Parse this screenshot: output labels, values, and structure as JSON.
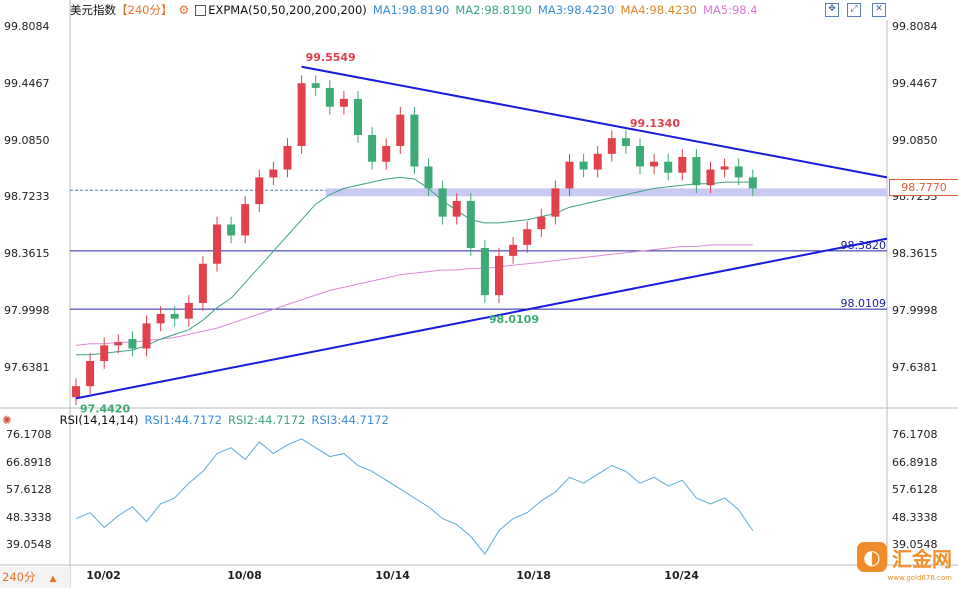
{
  "header": {
    "symbol": "美元指数",
    "period_tag": "【240分】",
    "settings_icon": "gear-icon",
    "indicator_name": "EXPMA(50,50,200,200,200)",
    "ma1": "MA1:98.8190",
    "ma2": "MA2:98.8190",
    "ma3": "MA3:98.4230",
    "ma4": "MA4:98.4230",
    "ma5": "MA5:98.4"
  },
  "rsi_header": {
    "indicator_name": "RSI(14,14,14)",
    "rsi1": "RSI1:44.7172",
    "rsi2": "RSI2:44.7172",
    "rsi3": "RSI3:44.7172"
  },
  "footer": {
    "period_label": "240分",
    "period_caret": "▲"
  },
  "watermark": {
    "logo_char": "◐",
    "text": "汇金网",
    "url": "www.gold678.com"
  },
  "colors": {
    "up": "#e0414d",
    "down": "#3daa78",
    "ma_fast": "#3ca384",
    "ma_slow": "#d98bd6",
    "trend": "#1a1adb",
    "rsi": "#5aabdc",
    "price_tag": "#d45f3c"
  },
  "chart_data": [
    {
      "type": "candlestick",
      "y_axis_ticks": [
        "99.8084",
        "99.4467",
        "99.0850",
        "98.7233",
        "98.3615",
        "97.9998",
        "97.6381"
      ],
      "x_axis_ticks": [
        "10/02",
        "10/08",
        "10/14",
        "10/18",
        "10/24"
      ],
      "ylim": [
        97.4,
        99.84
      ],
      "last_price": "98.7770",
      "annotations": [
        {
          "label": "99.5549",
          "value": 99.5549,
          "at_bar": 16
        },
        {
          "label": "99.1340",
          "value": 99.134,
          "at_bar": 39
        },
        {
          "label": "98.0109",
          "value": 98.0109,
          "at_bar": 29
        },
        {
          "label": "97.4420",
          "value": 97.442,
          "at_bar": 0
        }
      ],
      "horizontal_levels": [
        {
          "label": "98.3820",
          "value": 98.382
        },
        {
          "label": "98.0109",
          "value": 98.0109
        }
      ],
      "support_zone": [
        98.73,
        98.78
      ],
      "trendlines": [
        {
          "from": [
            16,
            99.555
          ],
          "to": [
            57,
            98.85
          ]
        },
        {
          "from": [
            0,
            97.442
          ],
          "to": [
            57,
            98.46
          ]
        }
      ],
      "closes": [
        97.52,
        97.68,
        97.78,
        97.8,
        97.76,
        97.92,
        97.98,
        97.95,
        98.05,
        98.3,
        98.55,
        98.48,
        98.68,
        98.85,
        98.9,
        99.05,
        99.45,
        99.42,
        99.3,
        99.35,
        99.12,
        98.95,
        99.05,
        99.25,
        98.92,
        98.78,
        98.6,
        98.7,
        98.4,
        98.1,
        98.35,
        98.42,
        98.52,
        98.6,
        98.78,
        98.95,
        98.9,
        99.0,
        99.1,
        99.05,
        98.92,
        98.95,
        98.88,
        98.98,
        98.8,
        98.9,
        98.92,
        98.85,
        98.78
      ],
      "opens": [
        97.45,
        97.52,
        97.68,
        97.78,
        97.82,
        97.76,
        97.92,
        97.98,
        97.95,
        98.05,
        98.3,
        98.55,
        98.48,
        98.68,
        98.85,
        98.9,
        99.05,
        99.45,
        99.42,
        99.3,
        99.35,
        99.12,
        98.95,
        99.05,
        99.25,
        98.92,
        98.78,
        98.6,
        98.7,
        98.4,
        98.1,
        98.35,
        98.42,
        98.52,
        98.6,
        98.78,
        98.95,
        98.9,
        99.0,
        99.1,
        99.05,
        98.92,
        98.95,
        98.88,
        98.98,
        98.8,
        98.9,
        98.92,
        98.85
      ],
      "ma_fast": [
        97.72,
        97.72,
        97.73,
        97.74,
        97.75,
        97.78,
        97.82,
        97.85,
        97.88,
        97.94,
        98.02,
        98.08,
        98.18,
        98.28,
        98.38,
        98.48,
        98.58,
        98.68,
        98.74,
        98.78,
        98.8,
        98.82,
        98.84,
        98.85,
        98.84,
        98.78,
        98.7,
        98.64,
        98.58,
        98.56,
        98.56,
        98.57,
        98.58,
        98.6,
        98.62,
        98.66,
        98.68,
        98.7,
        98.72,
        98.74,
        98.76,
        98.78,
        98.79,
        98.8,
        98.81,
        98.81,
        98.82,
        98.82,
        98.82
      ],
      "ma_slow": [
        97.78,
        97.79,
        97.79,
        97.8,
        97.8,
        97.81,
        97.82,
        97.83,
        97.85,
        97.87,
        97.89,
        97.92,
        97.95,
        97.98,
        98.01,
        98.04,
        98.07,
        98.1,
        98.13,
        98.15,
        98.17,
        98.19,
        98.21,
        98.23,
        98.24,
        98.25,
        98.26,
        98.26,
        98.27,
        98.27,
        98.28,
        98.29,
        98.3,
        98.31,
        98.32,
        98.33,
        98.34,
        98.35,
        98.36,
        98.37,
        98.38,
        98.39,
        98.4,
        98.41,
        98.41,
        98.42,
        98.42,
        98.42,
        98.42
      ]
    },
    {
      "type": "line",
      "name": "RSI",
      "y_axis_ticks": [
        "76.1708",
        "66.8918",
        "57.6128",
        "48.3338",
        "39.0548"
      ],
      "ylim": [
        34.0,
        78.0
      ],
      "values": [
        48,
        50,
        45,
        49,
        52,
        47,
        53,
        55,
        60,
        64,
        70,
        72,
        68,
        74,
        70,
        73,
        75,
        72,
        69,
        70,
        66,
        64,
        61,
        58,
        55,
        52,
        48,
        46,
        42,
        36,
        44,
        48,
        50,
        54,
        57,
        62,
        60,
        63,
        66,
        64,
        60,
        62,
        59,
        61,
        55,
        53,
        55,
        51,
        44
      ]
    }
  ]
}
